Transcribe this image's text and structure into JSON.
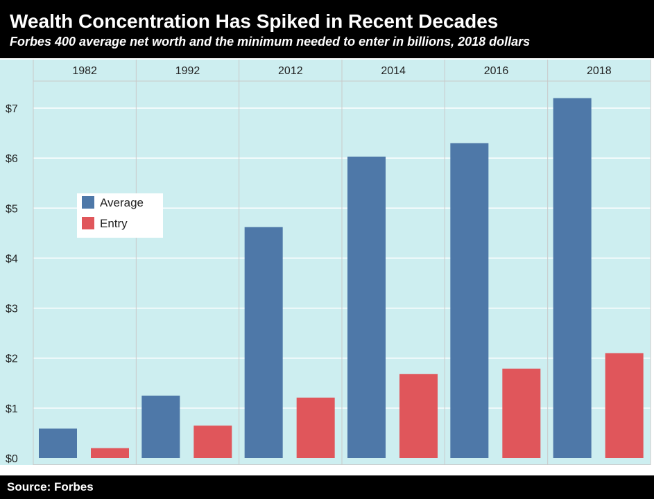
{
  "header": {
    "title": "Wealth Concentration Has Spiked in Recent Decades",
    "subtitle": "Forbes 400 average net worth and the minimum needed to enter in billions, 2018 dollars"
  },
  "footer": {
    "source": "Source: Forbes"
  },
  "colors": {
    "plot_background": "#cdeef0",
    "average": "#4e78a8",
    "entry": "#e0565b",
    "grid": "#ffffff",
    "divider": "#c9c9c9"
  },
  "chart_data": {
    "type": "bar",
    "categories": [
      "1982",
      "1992",
      "2012",
      "2014",
      "2016",
      "2018"
    ],
    "series": [
      {
        "name": "Average",
        "values": [
          0.59,
          1.25,
          4.62,
          6.03,
          6.3,
          7.2
        ]
      },
      {
        "name": "Entry",
        "values": [
          0.2,
          0.65,
          1.21,
          1.68,
          1.79,
          2.1
        ]
      }
    ],
    "title": "Wealth Concentration Has Spiked in Recent Decades",
    "subtitle": "Forbes 400 average net worth and the minimum needed to enter in billions, 2018 dollars",
    "xlabel": "",
    "ylabel": "",
    "ylim": [
      0,
      7.5
    ],
    "y_ticks": [
      0,
      1,
      2,
      3,
      4,
      5,
      6,
      7
    ],
    "y_tick_labels": [
      "$0",
      "$1",
      "$2",
      "$3",
      "$4",
      "$5",
      "$6",
      "$7"
    ],
    "category_axis_position": "top",
    "grid": true,
    "legend_position": "left-middle"
  }
}
